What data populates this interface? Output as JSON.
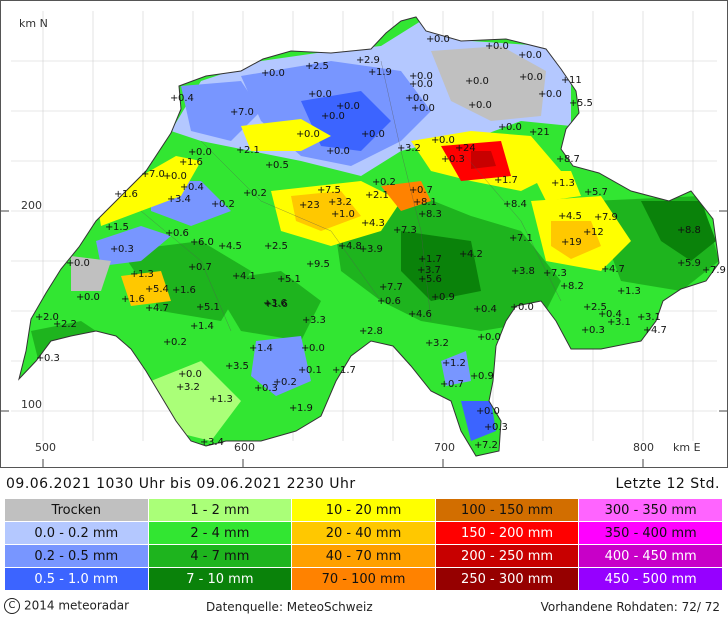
{
  "map": {
    "axis_y_unit": "km N",
    "axis_x_unit": "km E",
    "x_ticks": [
      "500",
      "600",
      "700",
      "800"
    ],
    "y_ticks": [
      "200",
      "100"
    ],
    "values": [
      {
        "label": "0.0",
        "x": 433,
        "y": 37
      },
      {
        "label": "0.0",
        "x": 492,
        "y": 44
      },
      {
        "label": "0.0",
        "x": 525,
        "y": 53
      },
      {
        "label": "2.9",
        "x": 363,
        "y": 58
      },
      {
        "label": "2.5",
        "x": 312,
        "y": 64
      },
      {
        "label": "1.9",
        "x": 375,
        "y": 70
      },
      {
        "label": "0.0",
        "x": 268,
        "y": 71
      },
      {
        "label": "0.0",
        "x": 416,
        "y": 74
      },
      {
        "label": "0.0",
        "x": 526,
        "y": 75
      },
      {
        "label": "11",
        "x": 568,
        "y": 78
      },
      {
        "label": "0.0",
        "x": 472,
        "y": 79
      },
      {
        "label": "0.0",
        "x": 416,
        "y": 82
      },
      {
        "label": "0.0",
        "x": 315,
        "y": 92
      },
      {
        "label": "0.0",
        "x": 545,
        "y": 92
      },
      {
        "label": "0.4",
        "x": 177,
        "y": 96
      },
      {
        "label": "0.0",
        "x": 412,
        "y": 96
      },
      {
        "label": "0.0",
        "x": 475,
        "y": 103
      },
      {
        "label": "0.0",
        "x": 343,
        "y": 104
      },
      {
        "label": "5.5",
        "x": 576,
        "y": 101
      },
      {
        "label": "7.0",
        "x": 237,
        "y": 110
      },
      {
        "label": "0.0",
        "x": 418,
        "y": 106
      },
      {
        "label": "0.0",
        "x": 328,
        "y": 114
      },
      {
        "label": "0.0",
        "x": 303,
        "y": 132
      },
      {
        "label": "0.0",
        "x": 368,
        "y": 132
      },
      {
        "label": "0.0",
        "x": 505,
        "y": 125
      },
      {
        "label": "21",
        "x": 536,
        "y": 130
      },
      {
        "label": "0.0",
        "x": 438,
        "y": 138
      },
      {
        "label": "2.1",
        "x": 243,
        "y": 148
      },
      {
        "label": "3.2",
        "x": 404,
        "y": 146
      },
      {
        "label": "24",
        "x": 462,
        "y": 146
      },
      {
        "label": "0.0",
        "x": 333,
        "y": 149
      },
      {
        "label": "0.0",
        "x": 195,
        "y": 150
      },
      {
        "label": "0.3",
        "x": 448,
        "y": 157
      },
      {
        "label": "8.7",
        "x": 563,
        "y": 157
      },
      {
        "label": "1.6",
        "x": 186,
        "y": 160
      },
      {
        "label": "0.5",
        "x": 272,
        "y": 163
      },
      {
        "label": "7.0",
        "x": 148,
        "y": 172
      },
      {
        "label": "0.0",
        "x": 170,
        "y": 174
      },
      {
        "label": "0.2",
        "x": 379,
        "y": 180
      },
      {
        "label": "1.7",
        "x": 501,
        "y": 178
      },
      {
        "label": "1.3",
        "x": 558,
        "y": 181
      },
      {
        "label": "0.4",
        "x": 187,
        "y": 185
      },
      {
        "label": "7.5",
        "x": 324,
        "y": 188
      },
      {
        "label": "2.1",
        "x": 372,
        "y": 193
      },
      {
        "label": "0.7",
        "x": 416,
        "y": 188
      },
      {
        "label": "5.7",
        "x": 591,
        "y": 190
      },
      {
        "label": "1.6",
        "x": 121,
        "y": 192
      },
      {
        "label": "0.2",
        "x": 250,
        "y": 191
      },
      {
        "label": "3.4",
        "x": 174,
        "y": 197
      },
      {
        "label": "3.2",
        "x": 335,
        "y": 200
      },
      {
        "label": "8.1",
        "x": 420,
        "y": 200
      },
      {
        "label": "8.4",
        "x": 510,
        "y": 202
      },
      {
        "label": "0.2",
        "x": 218,
        "y": 202
      },
      {
        "label": "23",
        "x": 306,
        "y": 203
      },
      {
        "label": "1.0",
        "x": 338,
        "y": 212
      },
      {
        "label": "8.3",
        "x": 425,
        "y": 212
      },
      {
        "label": "4.5",
        "x": 565,
        "y": 214
      },
      {
        "label": "7.9",
        "x": 601,
        "y": 215
      },
      {
        "label": "1.5",
        "x": 112,
        "y": 225
      },
      {
        "label": "4.3",
        "x": 368,
        "y": 221
      },
      {
        "label": "7.3",
        "x": 400,
        "y": 228
      },
      {
        "label": "12",
        "x": 590,
        "y": 230
      },
      {
        "label": "8.8",
        "x": 684,
        "y": 228
      },
      {
        "label": "0.6",
        "x": 172,
        "y": 231
      },
      {
        "label": "7.1",
        "x": 516,
        "y": 236
      },
      {
        "label": "19",
        "x": 568,
        "y": 240
      },
      {
        "label": "6.0",
        "x": 197,
        "y": 240
      },
      {
        "label": "4.5",
        "x": 225,
        "y": 244
      },
      {
        "label": "2.5",
        "x": 271,
        "y": 244
      },
      {
        "label": "4.8",
        "x": 345,
        "y": 244
      },
      {
        "label": "3.9",
        "x": 366,
        "y": 247
      },
      {
        "label": "0.3",
        "x": 117,
        "y": 247
      },
      {
        "label": "4.2",
        "x": 466,
        "y": 252
      },
      {
        "label": "1.7",
        "x": 425,
        "y": 257
      },
      {
        "label": "5.9",
        "x": 684,
        "y": 261
      },
      {
        "label": "0.0",
        "x": 73,
        "y": 261
      },
      {
        "label": "9.5",
        "x": 313,
        "y": 262
      },
      {
        "label": "0.7",
        "x": 195,
        "y": 265
      },
      {
        "label": "1.3",
        "x": 137,
        "y": 272
      },
      {
        "label": "4.1",
        "x": 239,
        "y": 274
      },
      {
        "label": "4.7",
        "x": 608,
        "y": 267
      },
      {
        "label": "3.7",
        "x": 424,
        "y": 268
      },
      {
        "label": "3.8",
        "x": 518,
        "y": 269
      },
      {
        "label": "7.3",
        "x": 550,
        "y": 271
      },
      {
        "label": "7.9",
        "x": 709,
        "y": 268
      },
      {
        "label": "5.1",
        "x": 284,
        "y": 277
      },
      {
        "label": "5.6",
        "x": 425,
        "y": 277
      },
      {
        "label": "8.2",
        "x": 567,
        "y": 284
      },
      {
        "label": "5.4",
        "x": 152,
        "y": 287
      },
      {
        "label": "1.6",
        "x": 179,
        "y": 288
      },
      {
        "label": "7.7",
        "x": 386,
        "y": 285
      },
      {
        "label": "1.3",
        "x": 624,
        "y": 289
      },
      {
        "label": "1.6",
        "x": 128,
        "y": 297
      },
      {
        "label": "0.0",
        "x": 83,
        "y": 295
      },
      {
        "label": "0.6",
        "x": 384,
        "y": 299
      },
      {
        "label": "0.9",
        "x": 438,
        "y": 295
      },
      {
        "label": "1.6",
        "x": 271,
        "y": 302
      },
      {
        "label": "3.6",
        "x": 270,
        "y": 301
      },
      {
        "label": "4.7",
        "x": 152,
        "y": 306
      },
      {
        "label": "5.1",
        "x": 203,
        "y": 305
      },
      {
        "label": "0.4",
        "x": 480,
        "y": 307
      },
      {
        "label": "0.0",
        "x": 517,
        "y": 305
      },
      {
        "label": "2.5",
        "x": 590,
        "y": 305
      },
      {
        "label": "0.4",
        "x": 605,
        "y": 312
      },
      {
        "label": "4.6",
        "x": 415,
        "y": 312
      },
      {
        "label": "2.0",
        "x": 42,
        "y": 315
      },
      {
        "label": "3.1",
        "x": 614,
        "y": 320
      },
      {
        "label": "3.1",
        "x": 644,
        "y": 315
      },
      {
        "label": "2.2",
        "x": 60,
        "y": 322
      },
      {
        "label": "3.3",
        "x": 309,
        "y": 318
      },
      {
        "label": "1.4",
        "x": 197,
        "y": 324
      },
      {
        "label": "4.7",
        "x": 650,
        "y": 328
      },
      {
        "label": "0.3",
        "x": 588,
        "y": 328
      },
      {
        "label": "2.8",
        "x": 366,
        "y": 329
      },
      {
        "label": "0.0",
        "x": 484,
        "y": 335
      },
      {
        "label": "0.2",
        "x": 170,
        "y": 340
      },
      {
        "label": "3.2",
        "x": 432,
        "y": 341
      },
      {
        "label": "1.4",
        "x": 256,
        "y": 346
      },
      {
        "label": "0.0",
        "x": 308,
        "y": 346
      },
      {
        "label": "0.3",
        "x": 43,
        "y": 356
      },
      {
        "label": "1.2",
        "x": 449,
        "y": 361
      },
      {
        "label": "3.5",
        "x": 232,
        "y": 364
      },
      {
        "label": "1.7",
        "x": 339,
        "y": 368
      },
      {
        "label": "0.0",
        "x": 185,
        "y": 372
      },
      {
        "label": "0.2",
        "x": 280,
        "y": 380
      },
      {
        "label": "0.1",
        "x": 305,
        "y": 368
      },
      {
        "label": "0.9",
        "x": 477,
        "y": 374
      },
      {
        "label": "0.7",
        "x": 447,
        "y": 382
      },
      {
        "label": "3.2",
        "x": 183,
        "y": 385
      },
      {
        "label": "0.3",
        "x": 261,
        "y": 386
      },
      {
        "label": "1.3",
        "x": 216,
        "y": 397
      },
      {
        "label": "1.9",
        "x": 296,
        "y": 406
      },
      {
        "label": "0.0",
        "x": 483,
        "y": 409
      },
      {
        "label": "0.3",
        "x": 491,
        "y": 425
      },
      {
        "label": "3.4",
        "x": 207,
        "y": 440
      },
      {
        "label": "7.2",
        "x": 481,
        "y": 443
      }
    ]
  },
  "info": {
    "period": "09.06.2021  1030 Uhr   bis   09.06.2021  2230 Uhr",
    "last": "Letzte  12  Std."
  },
  "legend": {
    "columns": [
      [
        {
          "label": "Trocken",
          "color": "#c0c0c0"
        },
        {
          "label": "0.0 - 0.2 mm",
          "color": "#b4c8ff"
        },
        {
          "label": "0.2 - 0.5 mm",
          "color": "#7896ff"
        },
        {
          "label": "0.5 - 1.0 mm",
          "color": "#3c64ff"
        }
      ],
      [
        {
          "label": "1 - 2 mm",
          "color": "#aaff78"
        },
        {
          "label": "2 - 4 mm",
          "color": "#32e632"
        },
        {
          "label": "4 - 7 mm",
          "color": "#1eb41e"
        },
        {
          "label": "7 - 10 mm",
          "color": "#0a820a"
        }
      ],
      [
        {
          "label": "10 - 20 mm",
          "color": "#ffff00"
        },
        {
          "label": "20 - 40 mm",
          "color": "#ffc800"
        },
        {
          "label": "40 - 70 mm",
          "color": "#ffa000"
        },
        {
          "label": "70 - 100 mm",
          "color": "#ff8200"
        }
      ],
      [
        {
          "label": "100 - 150 mm",
          "color": "#d26e00"
        },
        {
          "label": "150 - 200 mm",
          "color": "#ff0000"
        },
        {
          "label": "200 - 250 mm",
          "color": "#c80000"
        },
        {
          "label": "250 - 300 mm",
          "color": "#960000"
        }
      ],
      [
        {
          "label": "300 - 350 mm",
          "color": "#ff64ff"
        },
        {
          "label": "350 - 400 mm",
          "color": "#ff00ff"
        },
        {
          "label": "400 - 450 mm",
          "color": "#c800c8"
        },
        {
          "label": "450 - 500 mm",
          "color": "#9600ff"
        }
      ]
    ]
  },
  "footer": {
    "copyright": "2014  meteoradar",
    "source": "Datenquelle: MeteoSchweiz",
    "rawdata": "Vorhandene Rohdaten:  72/ 72"
  }
}
